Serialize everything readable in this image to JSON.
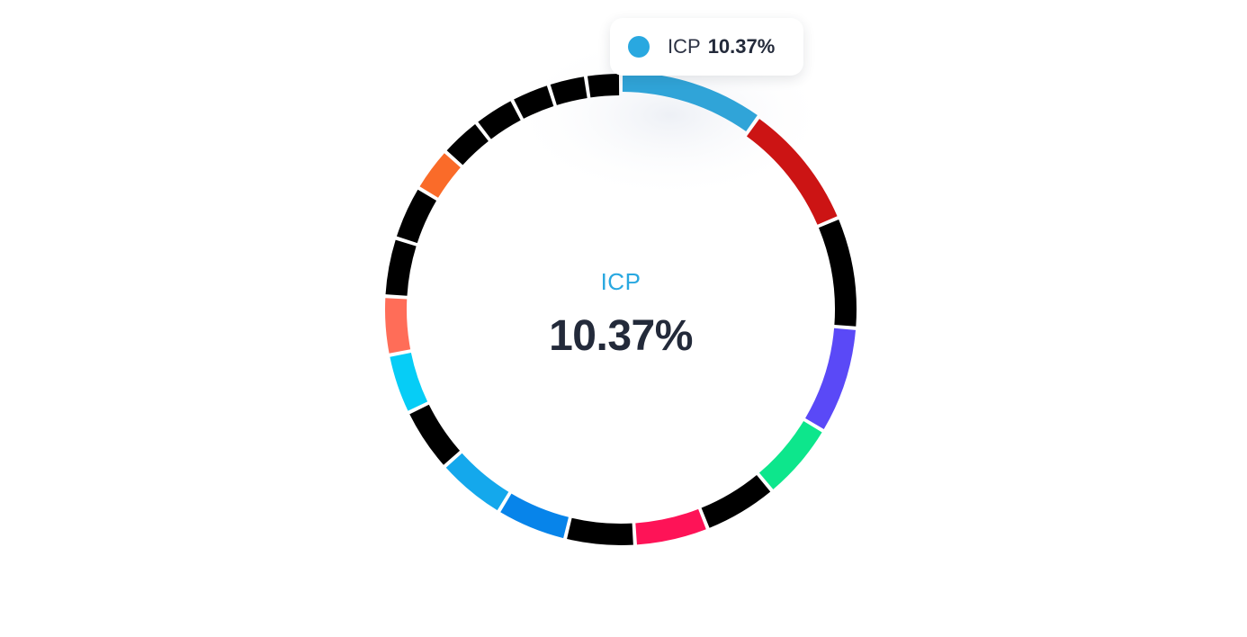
{
  "chart_data": {
    "type": "pie",
    "variant": "donut",
    "active_index": 0,
    "center": {
      "label": "ICP",
      "value": "10.37%"
    },
    "tooltip": {
      "label": "ICP",
      "value": "10.37%",
      "color": "#29a8e0"
    },
    "slices": [
      {
        "name": "ICP",
        "value": 10.37,
        "color": "#30a4d8"
      },
      {
        "value": 9.2,
        "color": "#cc1414"
      },
      {
        "value": 8.0,
        "color": "#000000"
      },
      {
        "value": 7.7,
        "color": "#5a49f7"
      },
      {
        "value": 5.6,
        "color": "#0de68c"
      },
      {
        "value": 5.3,
        "color": "#000000"
      },
      {
        "value": 5.3,
        "color": "#fe1357"
      },
      {
        "value": 5.0,
        "color": "#000000"
      },
      {
        "value": 5.1,
        "color": "#0784ea"
      },
      {
        "value": 5.0,
        "color": "#14a8ec"
      },
      {
        "value": 4.6,
        "color": "#000000"
      },
      {
        "value": 4.3,
        "color": "#06cdf6"
      },
      {
        "value": 4.2,
        "color": "#ff6d58"
      },
      {
        "value": 4.2,
        "color": "#000000"
      },
      {
        "value": 3.9,
        "color": "#000000"
      },
      {
        "value": 3.2,
        "color": "#fa6b29"
      },
      {
        "value": 3.0,
        "color": "#000000"
      },
      {
        "value": 3.0,
        "color": "#000000"
      },
      {
        "value": 2.8,
        "color": "#000000"
      },
      {
        "value": 2.7,
        "color": "#000000"
      },
      {
        "value": 2.5,
        "color": "#000000"
      }
    ]
  }
}
